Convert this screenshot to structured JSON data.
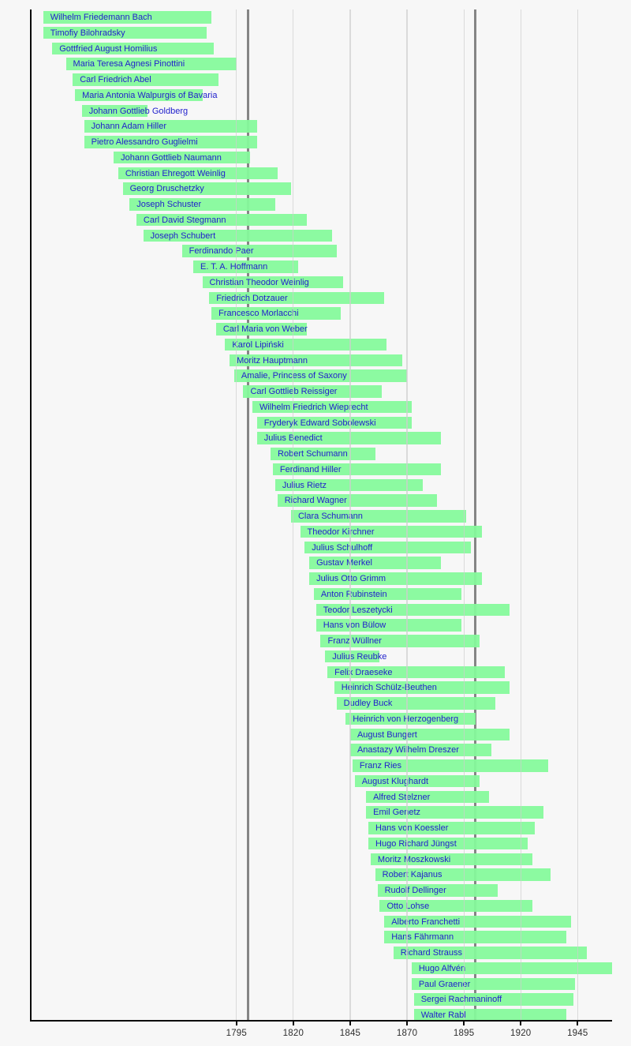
{
  "chart_data": {
    "type": "bar",
    "variant": "timeline-lifespans",
    "title": "",
    "x_axis": {
      "tick_labels": [
        "1795",
        "1820",
        "1845",
        "1870",
        "1895",
        "1920",
        "1945"
      ],
      "tick_years": [
        1795,
        1820,
        1845,
        1870,
        1895,
        1920,
        1945
      ],
      "century_line_years": [
        1800,
        1900
      ],
      "year_range": [
        1705,
        1960
      ],
      "grid": true
    },
    "series": [
      {
        "name": "Wilhelm Friedemann Bach",
        "born": 1710,
        "died": 1784
      },
      {
        "name": "Timofiy Bilohradsky",
        "born": 1710,
        "died": 1782
      },
      {
        "name": "Gottfried August Homilius",
        "born": 1714,
        "died": 1785
      },
      {
        "name": "Maria Teresa Agnesi Pinottini",
        "born": 1720,
        "died": 1795
      },
      {
        "name": "Carl Friedrich Abel",
        "born": 1723,
        "died": 1787
      },
      {
        "name": "Maria Antonia Walpurgis of Bavaria",
        "born": 1724,
        "died": 1780
      },
      {
        "name": "Johann Gottlieb Goldberg",
        "born": 1727,
        "died": 1756
      },
      {
        "name": "Johann Adam Hiller",
        "born": 1728,
        "died": 1804
      },
      {
        "name": "Pietro Alessandro Guglielmi",
        "born": 1728,
        "died": 1804
      },
      {
        "name": "Johann Gottlieb Naumann",
        "born": 1741,
        "died": 1801
      },
      {
        "name": "Christian Ehregott Weinlig",
        "born": 1743,
        "died": 1813
      },
      {
        "name": "Georg Druschetzky",
        "born": 1745,
        "died": 1819
      },
      {
        "name": "Joseph Schuster",
        "born": 1748,
        "died": 1812
      },
      {
        "name": "Carl David Stegmann",
        "born": 1751,
        "died": 1826
      },
      {
        "name": "Joseph Schubert",
        "born": 1754,
        "died": 1837
      },
      {
        "name": "Ferdinando Paer",
        "born": 1771,
        "died": 1839
      },
      {
        "name": "E. T. A. Hoffmann",
        "born": 1776,
        "died": 1822
      },
      {
        "name": "Christian Theodor Weinlig",
        "born": 1780,
        "died": 1842
      },
      {
        "name": "Friedrich Dotzauer",
        "born": 1783,
        "died": 1860
      },
      {
        "name": "Francesco Morlacchi",
        "born": 1784,
        "died": 1841
      },
      {
        "name": "Carl Maria von Weber",
        "born": 1786,
        "died": 1826
      },
      {
        "name": "Karol Lipiński",
        "born": 1790,
        "died": 1861
      },
      {
        "name": "Moritz Hauptmann",
        "born": 1792,
        "died": 1868
      },
      {
        "name": "Amalie, Princess of Saxony",
        "born": 1794,
        "died": 1870
      },
      {
        "name": "Carl Gottlieb Reissiger",
        "born": 1798,
        "died": 1859
      },
      {
        "name": "Wilhelm Friedrich Wieprecht",
        "born": 1802,
        "died": 1872
      },
      {
        "name": "Fryderyk Edward Sobolewski",
        "born": 1804,
        "died": 1872
      },
      {
        "name": "Julius Benedict",
        "born": 1804,
        "died": 1885
      },
      {
        "name": "Robert Schumann",
        "born": 1810,
        "died": 1856
      },
      {
        "name": "Ferdinand Hiller",
        "born": 1811,
        "died": 1885
      },
      {
        "name": "Julius Rietz",
        "born": 1812,
        "died": 1877
      },
      {
        "name": "Richard Wagner",
        "born": 1813,
        "died": 1883
      },
      {
        "name": "Clara Schumann",
        "born": 1819,
        "died": 1896
      },
      {
        "name": "Theodor Kirchner",
        "born": 1823,
        "died": 1903
      },
      {
        "name": "Julius Schulhoff",
        "born": 1825,
        "died": 1898
      },
      {
        "name": "Gustav Merkel",
        "born": 1827,
        "died": 1885
      },
      {
        "name": "Julius Otto Grimm",
        "born": 1827,
        "died": 1903
      },
      {
        "name": "Anton Rubinstein",
        "born": 1829,
        "died": 1894
      },
      {
        "name": "Teodor Leszetycki",
        "born": 1830,
        "died": 1915
      },
      {
        "name": "Hans von Bülow",
        "born": 1830,
        "died": 1894
      },
      {
        "name": "Franz Wüllner",
        "born": 1832,
        "died": 1902
      },
      {
        "name": "Julius Reubke",
        "born": 1834,
        "died": 1858
      },
      {
        "name": "Felix Draeseke",
        "born": 1835,
        "died": 1913
      },
      {
        "name": "Heinrich Schülz-Beuthen",
        "born": 1838,
        "died": 1915
      },
      {
        "name": "Dudley Buck",
        "born": 1839,
        "died": 1909
      },
      {
        "name": "Heinrich von Herzogenberg",
        "born": 1843,
        "died": 1900
      },
      {
        "name": "August Bungert",
        "born": 1845,
        "died": 1915
      },
      {
        "name": "Anastazy Wilhelm Dreszer",
        "born": 1845,
        "died": 1907
      },
      {
        "name": "Franz Ries",
        "born": 1846,
        "died": 1932
      },
      {
        "name": "August Klughardt",
        "born": 1847,
        "died": 1902
      },
      {
        "name": "Alfred Stelzner",
        "born": 1852,
        "died": 1906
      },
      {
        "name": "Emil Genetz",
        "born": 1852,
        "died": 1930
      },
      {
        "name": "Hans von Koessler",
        "born": 1853,
        "died": 1926
      },
      {
        "name": "Hugo Richard Jüngst",
        "born": 1853,
        "died": 1923
      },
      {
        "name": "Moritz Moszkowski",
        "born": 1854,
        "died": 1925
      },
      {
        "name": "Robert Kajanus",
        "born": 1856,
        "died": 1933
      },
      {
        "name": "Rudolf Dellinger",
        "born": 1857,
        "died": 1910
      },
      {
        "name": "Otto Lohse",
        "born": 1858,
        "died": 1925
      },
      {
        "name": "Alberto Franchetti",
        "born": 1860,
        "died": 1942
      },
      {
        "name": "Hans Fährmann",
        "born": 1860,
        "died": 1940
      },
      {
        "name": "Richard Strauss",
        "born": 1864,
        "died": 1949
      },
      {
        "name": "Hugo Alfvén",
        "born": 1872,
        "died": 1960
      },
      {
        "name": "Paul Graener",
        "born": 1872,
        "died": 1944
      },
      {
        "name": "Sergei Rachmaninoff",
        "born": 1873,
        "died": 1943
      },
      {
        "name": "Walter Rabl",
        "born": 1873,
        "died": 1940
      }
    ]
  },
  "colors": {
    "background": "#f7f7f7",
    "bar_fill": "#85fa9b",
    "bar_text": "#2121cc",
    "grid_light": "#cdcdcd",
    "grid_dark": "#858585",
    "axis": "#0a0a0a",
    "tick_label": "#2e2e2e"
  }
}
